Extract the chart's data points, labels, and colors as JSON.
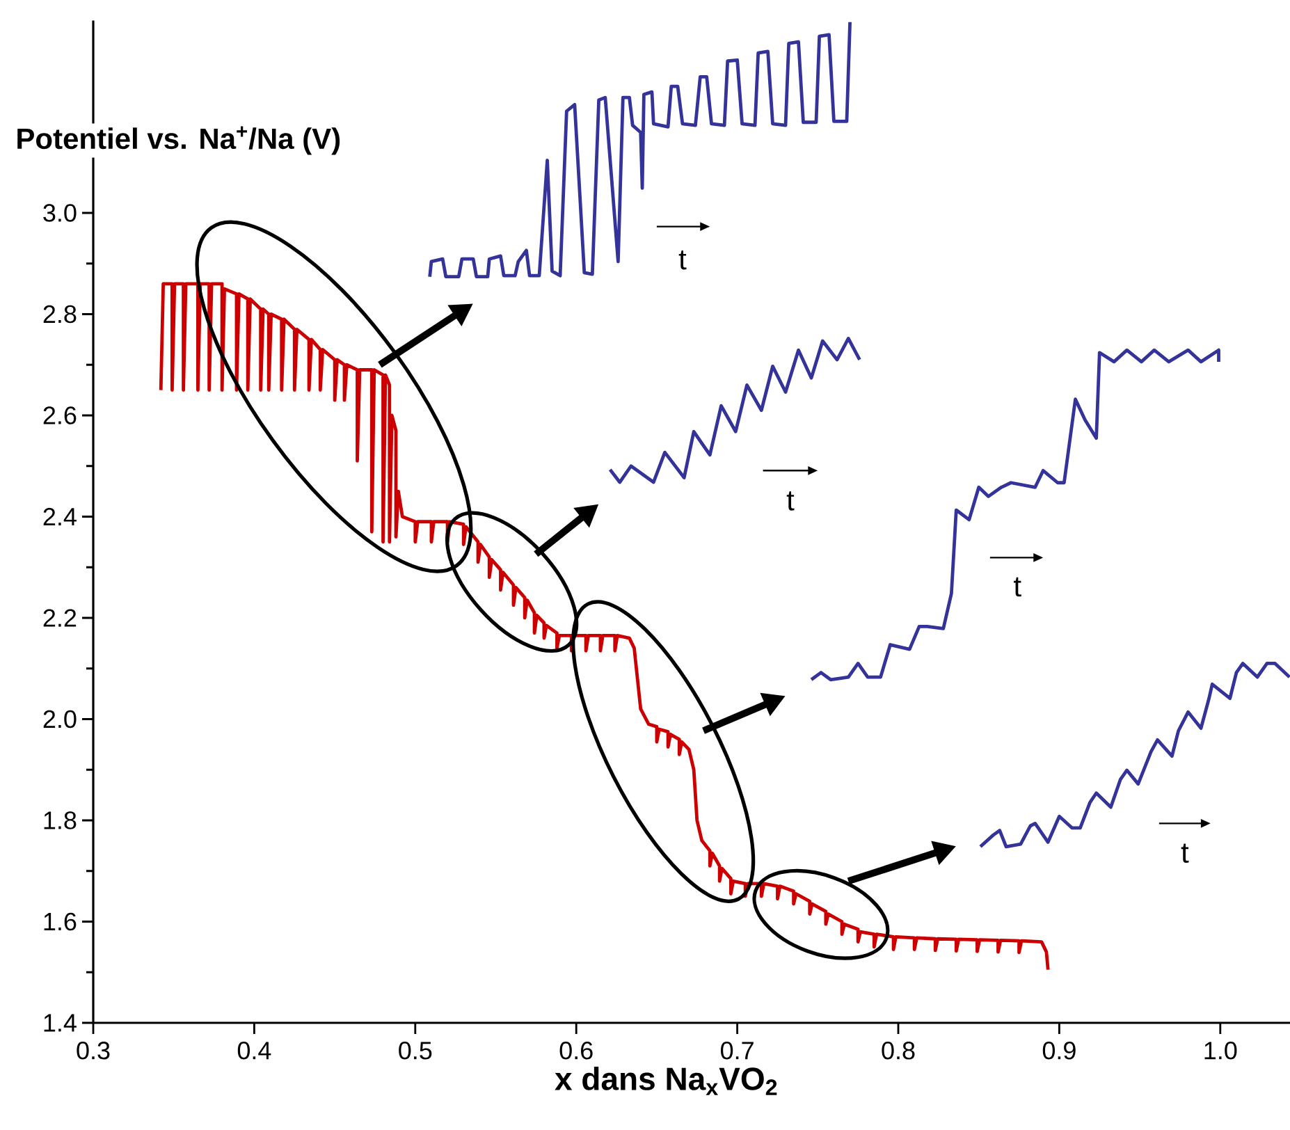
{
  "chart_data": {
    "type": "line",
    "ylabel": "Potentiel vs. Na$^{+}$/Na (V)",
    "xlabel": "x dans Na$_{x}$VO$_{2}$",
    "xlim": [
      0.3,
      1.045
    ],
    "ylim": [
      1.4,
      3.38
    ],
    "xticks": [
      0.3,
      0.4,
      0.5,
      0.6,
      0.7,
      0.8,
      0.9,
      {
        "value": 1.0,
        "label": "1.0"
      }
    ],
    "yticks": [
      1.4,
      1.6,
      1.8,
      {
        "value": 2.0,
        "label": "2.0"
      },
      2.2,
      2.4,
      2.6,
      2.8,
      {
        "value": 3.0,
        "label": "3.0"
      }
    ],
    "line_style": "solid",
    "annotations": [
      "t",
      "t",
      "t",
      "t"
    ],
    "series": [
      {
        "color": "#cc0000",
        "x": [
          0.342,
          0.3435,
          0.349,
          0.349,
          0.3505,
          0.356,
          0.356,
          0.3575,
          0.365,
          0.365,
          0.3665,
          0.372,
          0.372,
          0.3735,
          0.38,
          0.38,
          0.3815,
          0.389,
          0.389,
          0.3905,
          0.396,
          0.396,
          0.3975,
          0.404,
          0.404,
          0.4055,
          0.409,
          0.409,
          0.4105,
          0.417,
          0.417,
          0.4185,
          0.425,
          0.425,
          0.4265,
          0.434,
          0.434,
          0.4355,
          0.441,
          0.441,
          0.4425,
          0.45,
          0.45,
          0.4515,
          0.456,
          0.456,
          0.4575,
          0.464,
          0.464,
          0.4655,
          0.473,
          0.473,
          0.4745,
          0.48,
          0.48,
          0.4815,
          0.484,
          0.484,
          0.4855,
          0.488,
          0.488,
          0.4895,
          0.492,
          0.5,
          0.5,
          0.5015,
          0.51,
          0.51,
          0.5115,
          0.52,
          0.52,
          0.5215,
          0.53,
          0.53,
          0.5315,
          0.539,
          0.539,
          0.5405,
          0.546,
          0.546,
          0.5475,
          0.553,
          0.553,
          0.5545,
          0.561,
          0.561,
          0.5625,
          0.568,
          0.568,
          0.5695,
          0.574,
          0.574,
          0.5755,
          0.58,
          0.58,
          0.5815,
          0.588,
          0.588,
          0.5895,
          0.597,
          0.597,
          0.5985,
          0.606,
          0.606,
          0.6075,
          0.615,
          0.615,
          0.6165,
          0.624,
          0.624,
          0.6255,
          0.633,
          0.636,
          0.638,
          0.64,
          0.645,
          0.65,
          0.65,
          0.6515,
          0.657,
          0.657,
          0.6585,
          0.664,
          0.664,
          0.6655,
          0.67,
          0.673,
          0.675,
          0.678,
          0.683,
          0.683,
          0.6845,
          0.689,
          0.689,
          0.6905,
          0.696,
          0.696,
          0.6975,
          0.705,
          0.705,
          0.7065,
          0.715,
          0.715,
          0.7165,
          0.725,
          0.725,
          0.7265,
          0.735,
          0.735,
          0.7365,
          0.745,
          0.745,
          0.7465,
          0.755,
          0.755,
          0.7565,
          0.765,
          0.765,
          0.7665,
          0.775,
          0.775,
          0.7765,
          0.785,
          0.785,
          0.7865,
          0.797,
          0.797,
          0.7985,
          0.81,
          0.81,
          0.8115,
          0.823,
          0.823,
          0.8245,
          0.836,
          0.836,
          0.8375,
          0.849,
          0.849,
          0.8505,
          0.862,
          0.862,
          0.8635,
          0.875,
          0.875,
          0.8765,
          0.889,
          0.892,
          0.893
        ],
        "values": [
          2.65,
          2.86,
          2.86,
          2.65,
          2.86,
          2.86,
          2.65,
          2.86,
          2.86,
          2.65,
          2.86,
          2.86,
          2.65,
          2.86,
          2.86,
          2.65,
          2.85,
          2.84,
          2.65,
          2.84,
          2.83,
          2.65,
          2.83,
          2.81,
          2.65,
          2.81,
          2.8,
          2.65,
          2.8,
          2.79,
          2.65,
          2.79,
          2.77,
          2.65,
          2.77,
          2.75,
          2.65,
          2.75,
          2.73,
          2.65,
          2.73,
          2.71,
          2.63,
          2.71,
          2.7,
          2.63,
          2.7,
          2.69,
          2.51,
          2.69,
          2.69,
          2.37,
          2.69,
          2.68,
          2.35,
          2.68,
          2.66,
          2.35,
          2.6,
          2.57,
          2.36,
          2.45,
          2.4,
          2.39,
          2.35,
          2.39,
          2.39,
          2.35,
          2.39,
          2.39,
          2.35,
          2.39,
          2.385,
          2.345,
          2.38,
          2.35,
          2.31,
          2.345,
          2.32,
          2.28,
          2.315,
          2.295,
          2.255,
          2.29,
          2.265,
          2.225,
          2.26,
          2.24,
          2.2,
          2.235,
          2.21,
          2.17,
          2.205,
          2.19,
          2.16,
          2.185,
          2.17,
          2.14,
          2.165,
          2.165,
          2.135,
          2.165,
          2.165,
          2.135,
          2.165,
          2.165,
          2.135,
          2.165,
          2.165,
          2.135,
          2.165,
          2.16,
          2.14,
          2.08,
          2.02,
          1.99,
          1.985,
          1.955,
          1.98,
          1.975,
          1.945,
          1.97,
          1.96,
          1.93,
          1.955,
          1.94,
          1.9,
          1.8,
          1.76,
          1.74,
          1.71,
          1.735,
          1.71,
          1.68,
          1.705,
          1.685,
          1.655,
          1.68,
          1.675,
          1.65,
          1.675,
          1.675,
          1.65,
          1.675,
          1.67,
          1.645,
          1.67,
          1.66,
          1.635,
          1.655,
          1.64,
          1.615,
          1.635,
          1.62,
          1.595,
          1.615,
          1.6,
          1.575,
          1.595,
          1.585,
          1.56,
          1.58,
          1.575,
          1.55,
          1.575,
          1.57,
          1.545,
          1.57,
          1.568,
          1.545,
          1.568,
          1.566,
          1.543,
          1.566,
          1.565,
          1.542,
          1.565,
          1.564,
          1.541,
          1.564,
          1.563,
          1.54,
          1.563,
          1.562,
          1.539,
          1.562,
          1.56,
          1.54,
          1.505
        ]
      },
      {
        "color": "#333399",
        "x": [
          0.509,
          0.51,
          0.517,
          0.519,
          0.527,
          0.529,
          0.536,
          0.538,
          0.545,
          0.546,
          0.553,
          0.555,
          0.562,
          0.564,
          0.569,
          0.571,
          0.577,
          0.582,
          0.585,
          0.59,
          0.594,
          0.599,
          0.605,
          0.61,
          0.614,
          0.618,
          0.626,
          0.629,
          0.633,
          0.635,
          0.64,
          0.641,
          0.642,
          0.647,
          0.648,
          0.657,
          0.659,
          0.663,
          0.666,
          0.674,
          0.677,
          0.681,
          0.684,
          0.692,
          0.694,
          0.7,
          0.703,
          0.711,
          0.713,
          0.719,
          0.722,
          0.73,
          0.732,
          0.738,
          0.741,
          0.749,
          0.751,
          0.757,
          0.76,
          0.768,
          0.77
        ],
        "values": [
          2.874,
          2.904,
          2.909,
          2.874,
          2.874,
          2.909,
          2.909,
          2.874,
          2.874,
          2.909,
          2.915,
          2.876,
          2.876,
          2.904,
          2.926,
          2.876,
          2.876,
          3.104,
          2.885,
          2.876,
          3.201,
          3.214,
          2.882,
          2.879,
          3.223,
          3.228,
          2.904,
          3.228,
          3.228,
          3.173,
          3.159,
          3.049,
          3.234,
          3.239,
          3.176,
          3.17,
          3.25,
          3.25,
          3.176,
          3.173,
          3.269,
          3.269,
          3.176,
          3.173,
          3.3,
          3.302,
          3.176,
          3.173,
          3.316,
          3.319,
          3.176,
          3.173,
          3.335,
          3.338,
          3.179,
          3.179,
          3.349,
          3.352,
          3.181,
          3.181,
          3.377
        ]
      },
      {
        "color": "#333399",
        "x": [
          0.621,
          0.627,
          0.634,
          0.648,
          0.655,
          0.667,
          0.673,
          0.683,
          0.69,
          0.699,
          0.706,
          0.715,
          0.722,
          0.73,
          0.738,
          0.746,
          0.753,
          0.762,
          0.769,
          0.776
        ],
        "values": [
          2.493,
          2.468,
          2.5,
          2.468,
          2.527,
          2.477,
          2.568,
          2.522,
          2.619,
          2.568,
          2.66,
          2.61,
          2.697,
          2.646,
          2.729,
          2.674,
          2.747,
          2.71,
          2.752,
          2.71
        ]
      },
      {
        "color": "#333399",
        "x": [
          0.746,
          0.752,
          0.758,
          0.769,
          0.775,
          0.781,
          0.789,
          0.795,
          0.807,
          0.813,
          0.818,
          0.828,
          0.833,
          0.836,
          0.844,
          0.85,
          0.856,
          0.864,
          0.87,
          0.885,
          0.89,
          0.899,
          0.903,
          0.91,
          0.916,
          0.923,
          0.925,
          0.934,
          0.942,
          0.951,
          0.959,
          0.968,
          0.98,
          0.988,
          0.999,
          0.999
        ],
        "values": [
          2.078,
          2.092,
          2.078,
          2.083,
          2.11,
          2.083,
          2.083,
          2.147,
          2.138,
          2.183,
          2.183,
          2.179,
          2.248,
          2.413,
          2.394,
          2.458,
          2.44,
          2.458,
          2.467,
          2.458,
          2.491,
          2.467,
          2.467,
          2.632,
          2.591,
          2.555,
          2.724,
          2.706,
          2.729,
          2.706,
          2.729,
          2.706,
          2.729,
          2.706,
          2.729,
          2.706
        ]
      },
      {
        "color": "#333399",
        "x": [
          0.851,
          0.859,
          0.863,
          0.867,
          0.876,
          0.882,
          0.885,
          0.893,
          0.9,
          0.908,
          0.913,
          0.919,
          0.923,
          0.932,
          0.938,
          0.942,
          0.949,
          0.957,
          0.961,
          0.97,
          0.974,
          0.98,
          0.988,
          0.993,
          0.995,
          1.006,
          1.01,
          1.014,
          1.023,
          1.029,
          1.034,
          1.043
        ],
        "values": [
          1.748,
          1.771,
          1.78,
          1.748,
          1.753,
          1.789,
          1.794,
          1.757,
          1.808,
          1.785,
          1.785,
          1.835,
          1.854,
          1.826,
          1.881,
          1.899,
          1.872,
          1.936,
          1.959,
          1.927,
          1.977,
          2.014,
          1.982,
          2.041,
          2.069,
          2.041,
          2.092,
          2.11,
          2.083,
          2.11,
          2.11,
          2.083
        ]
      }
    ]
  }
}
